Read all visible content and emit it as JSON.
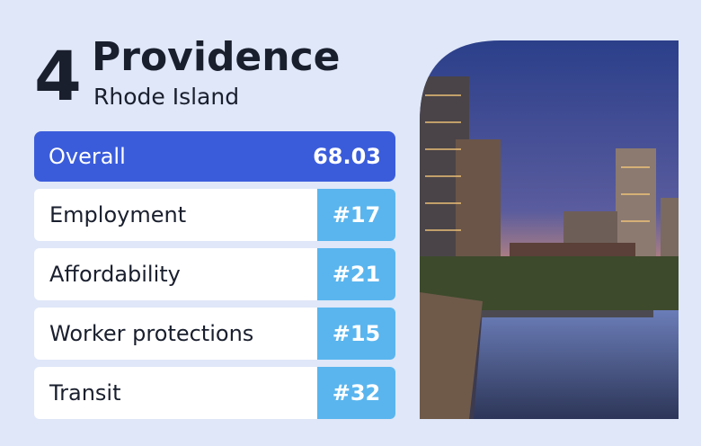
{
  "header": {
    "rank": 4,
    "city": "Providence",
    "state": "Rhode Island"
  },
  "overall": {
    "label": "Overall",
    "score": 68.03
  },
  "categories": [
    {
      "label": "Employment",
      "rank": "#17"
    },
    {
      "label": "Affordability",
      "rank": "#21"
    },
    {
      "label": "Worker protections",
      "rank": "#15"
    },
    {
      "label": "Transit",
      "rank": "#32"
    }
  ]
}
